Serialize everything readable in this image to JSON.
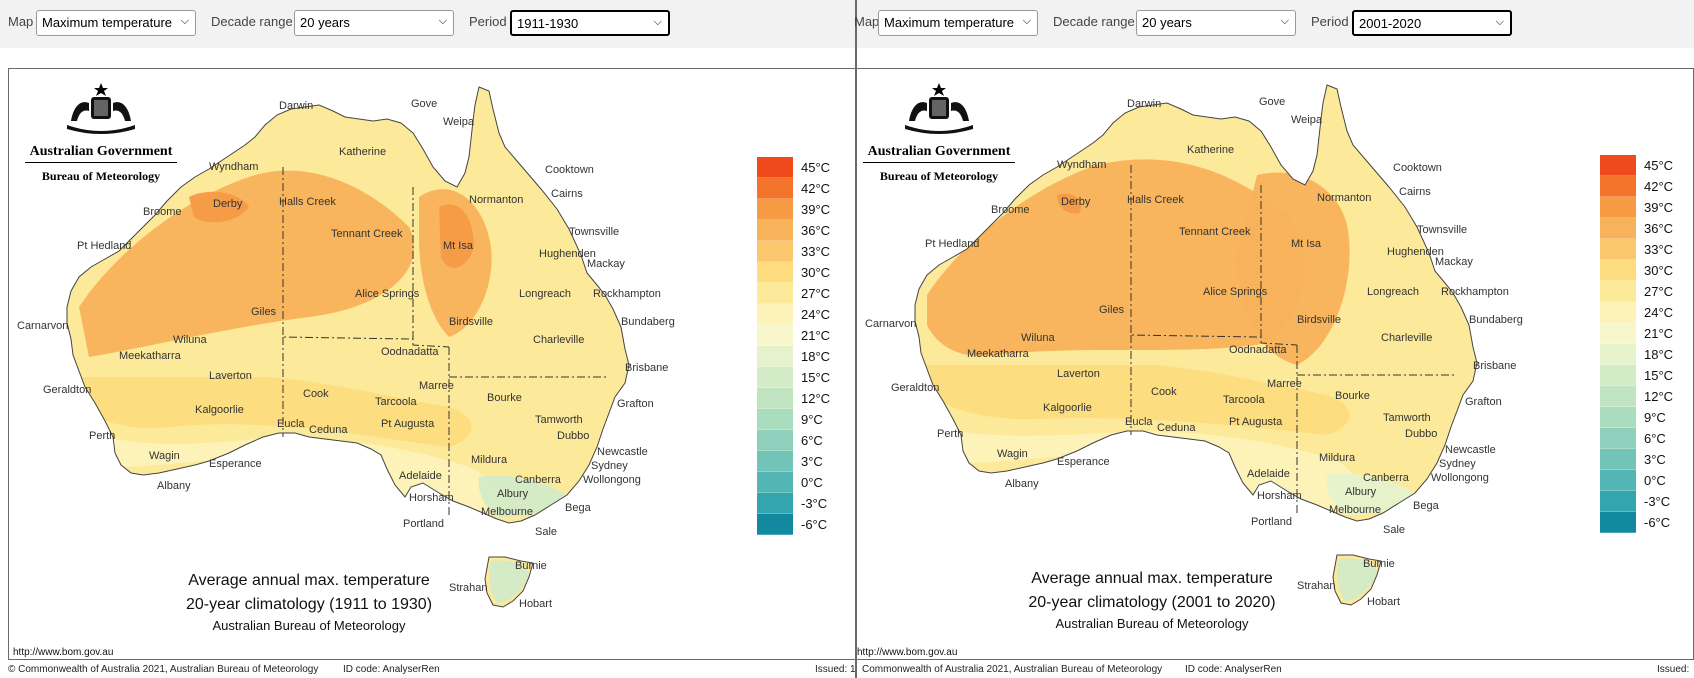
{
  "panels": [
    {
      "controls": {
        "map_label": "Map",
        "map_value": "Maximum temperature",
        "decade_label": "Decade range",
        "decade_value": "20 years",
        "period_label": "Period",
        "period_value": "1911-1930"
      },
      "logo": {
        "line1": "Australian Government",
        "line2": "Bureau of Meteorology"
      },
      "caption": {
        "line1": "Average annual max. temperature",
        "line2": "20-year climatology (1911 to 1930)",
        "line3": "Australian Bureau of Meteorology"
      },
      "url": "http://www.bom.gov.au",
      "footer": {
        "copyright": "© Commonwealth of Australia 2021, Australian Bureau of Meteorology",
        "id_code": "ID code: AnalyserRen",
        "issued": "Issued: 1"
      }
    },
    {
      "controls": {
        "map_label": "Map",
        "map_value": "Maximum temperature",
        "decade_label": "Decade range",
        "decade_value": "20 years",
        "period_label": "Period",
        "period_value": "2001-2020"
      },
      "logo": {
        "line1": "Australian Government",
        "line2": "Bureau of Meteorology"
      },
      "caption": {
        "line1": "Average annual max. temperature",
        "line2": "20-year climatology (2001 to 2020)",
        "line3": "Australian Bureau of Meteorology"
      },
      "url": "http://www.bom.gov.au",
      "footer": {
        "copyright": "Commonwealth of Australia 2021, Australian Bureau of Meteorology",
        "id_code": "ID code: AnalyserRen",
        "issued": "Issued:"
      }
    }
  ],
  "legend": {
    "labels": [
      "45°C",
      "42°C",
      "39°C",
      "36°C",
      "33°C",
      "30°C",
      "27°C",
      "24°C",
      "21°C",
      "18°C",
      "15°C",
      "12°C",
      "9°C",
      "6°C",
      "3°C",
      "0°C",
      "-3°C",
      "-6°C"
    ],
    "colors": [
      "#ee4a1c",
      "#f4742c",
      "#f69a44",
      "#f8b25a",
      "#fac76c",
      "#fcdc7e",
      "#fde99a",
      "#fdf2b8",
      "#f8f7cc",
      "#e6f2cc",
      "#d3ebc7",
      "#c0e4c2",
      "#aadcbe",
      "#8ed0bb",
      "#72c4b8",
      "#54b6b4",
      "#33a5ae",
      "#12899f"
    ]
  },
  "places": [
    "Darwin",
    "Gove",
    "Weipa",
    "Katherine",
    "Wyndham",
    "Cooktown",
    "Cairns",
    "Broome",
    "Derby",
    "Halls Creek",
    "Normanton",
    "Townsville",
    "Tennant Creek",
    "Mt Isa",
    "Hughenden",
    "Mackay",
    "Pt Hedland",
    "Rockhampton",
    "Alice Springs",
    "Longreach",
    "Giles",
    "Birdsville",
    "Bundaberg",
    "Carnarvon",
    "Wiluna",
    "Charleville",
    "Oodnadatta",
    "Meekatharra",
    "Brisbane",
    "Laverton",
    "Marree",
    "Geraldton",
    "Cook",
    "Tarcoola",
    "Bourke",
    "Grafton",
    "Kalgoorlie",
    "Eucla",
    "Ceduna",
    "Pt Augusta",
    "Tamworth",
    "Dubbo",
    "Perth",
    "Wagin",
    "Esperance",
    "Newcastle",
    "Mildura",
    "Sydney",
    "Canberra",
    "Wollongong",
    "Adelaide",
    "Albany",
    "Albury",
    "Horsham",
    "Bega",
    "Melbourne",
    "Portland",
    "Sale",
    "Burnie",
    "Strahan",
    "Hobart"
  ]
}
